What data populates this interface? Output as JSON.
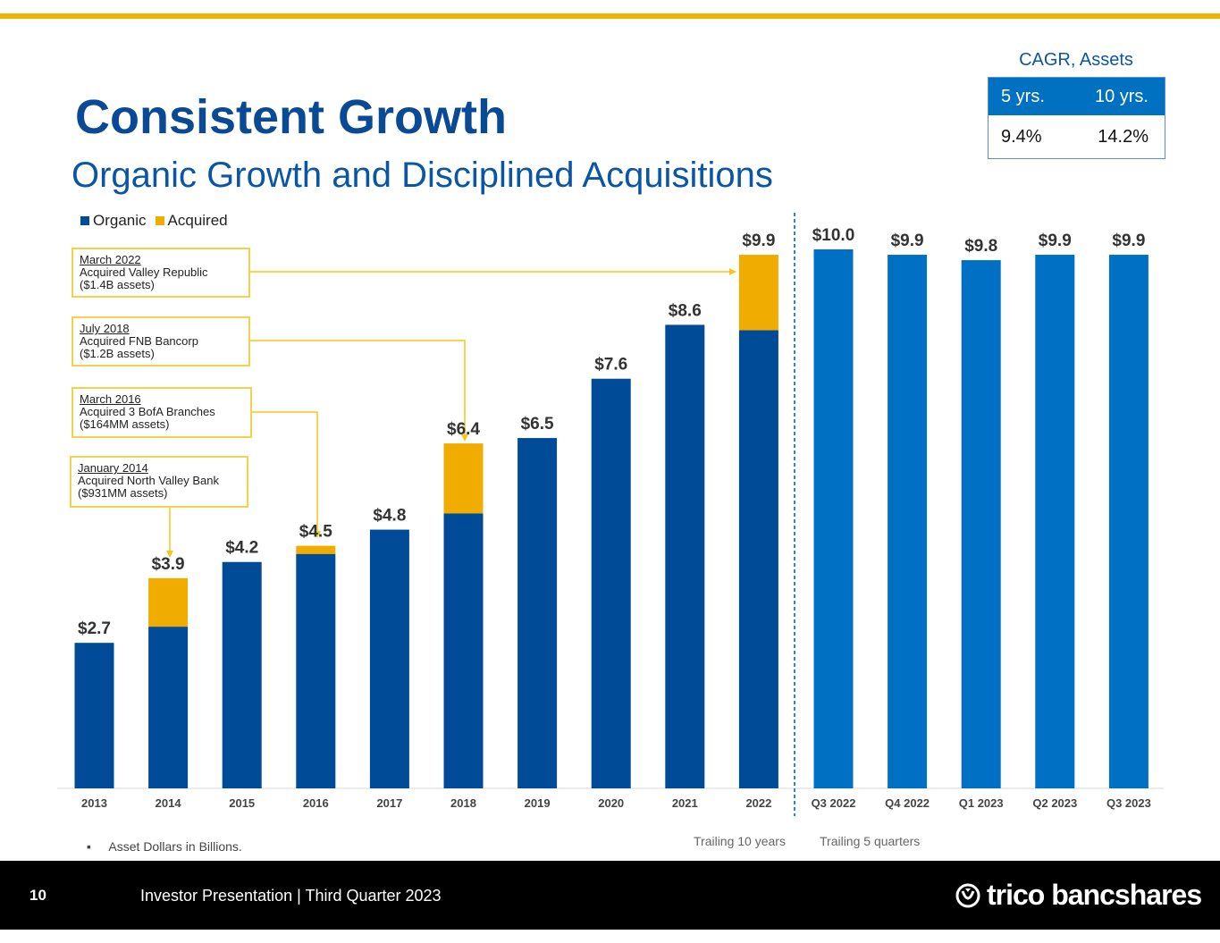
{
  "header": {
    "title": "Consistent Growth",
    "subtitle": "Organic Growth and Disciplined Acquisitions"
  },
  "cagr": {
    "label": "CAGR, Assets",
    "headers": [
      "5 yrs.",
      "10 yrs."
    ],
    "values": [
      "9.4%",
      "14.2%"
    ]
  },
  "annotations": [
    {
      "date": "March 2022",
      "text": "Acquired Valley Republic",
      "assets": "($1.4B assets)"
    },
    {
      "date": "July 2018",
      "text": "Acquired FNB Bancorp",
      "assets": "($1.2B assets)"
    },
    {
      "date": "March 2016",
      "text": "Acquired 3 BofA Branches",
      "assets": "($164MM assets)"
    },
    {
      "date": "January 2014",
      "text": "Acquired North Valley Bank",
      "assets": "($931MM assets)"
    }
  ],
  "footnote": "Asset Dollars in Billions.",
  "trailing": {
    "years": "Trailing 10 years",
    "quarters": "Trailing 5 quarters"
  },
  "footer": {
    "page": "10",
    "presentation": "Investor Presentation | Third Quarter 2023",
    "logo": "trico bancshares"
  },
  "colors": {
    "organic": "#004b97",
    "acquired": "#f0ad00",
    "quarter": "#0070c4",
    "accent": "#f0b400"
  },
  "chart_data": {
    "type": "bar",
    "stacked": true,
    "legend": [
      "Organic",
      "Acquired"
    ],
    "legend_position": "top-left",
    "categories": [
      "2013",
      "2014",
      "2015",
      "2016",
      "2017",
      "2018",
      "2019",
      "2020",
      "2021",
      "2022",
      "Q3 2022",
      "Q4 2022",
      "Q1 2023",
      "Q2 2023",
      "Q3 2023"
    ],
    "series": [
      {
        "name": "Organic",
        "values": [
          2.7,
          3.0,
          4.2,
          4.35,
          4.8,
          5.1,
          6.5,
          7.6,
          8.6,
          8.5,
          10.0,
          9.9,
          9.8,
          9.9,
          9.9
        ]
      },
      {
        "name": "Acquired",
        "values": [
          0,
          0.9,
          0,
          0.15,
          0,
          1.3,
          0,
          0,
          0,
          1.4,
          0,
          0,
          0,
          0,
          0
        ]
      }
    ],
    "labels": [
      "$2.7",
      "$3.9",
      "$4.2",
      "$4.5",
      "$4.8",
      "$6.4",
      "$6.5",
      "$7.6",
      "$8.6",
      "$9.9",
      "$10.0",
      "$9.9",
      "$9.8",
      "$9.9",
      "$9.9"
    ],
    "ylim": [
      0,
      10.5
    ],
    "grid": false
  }
}
